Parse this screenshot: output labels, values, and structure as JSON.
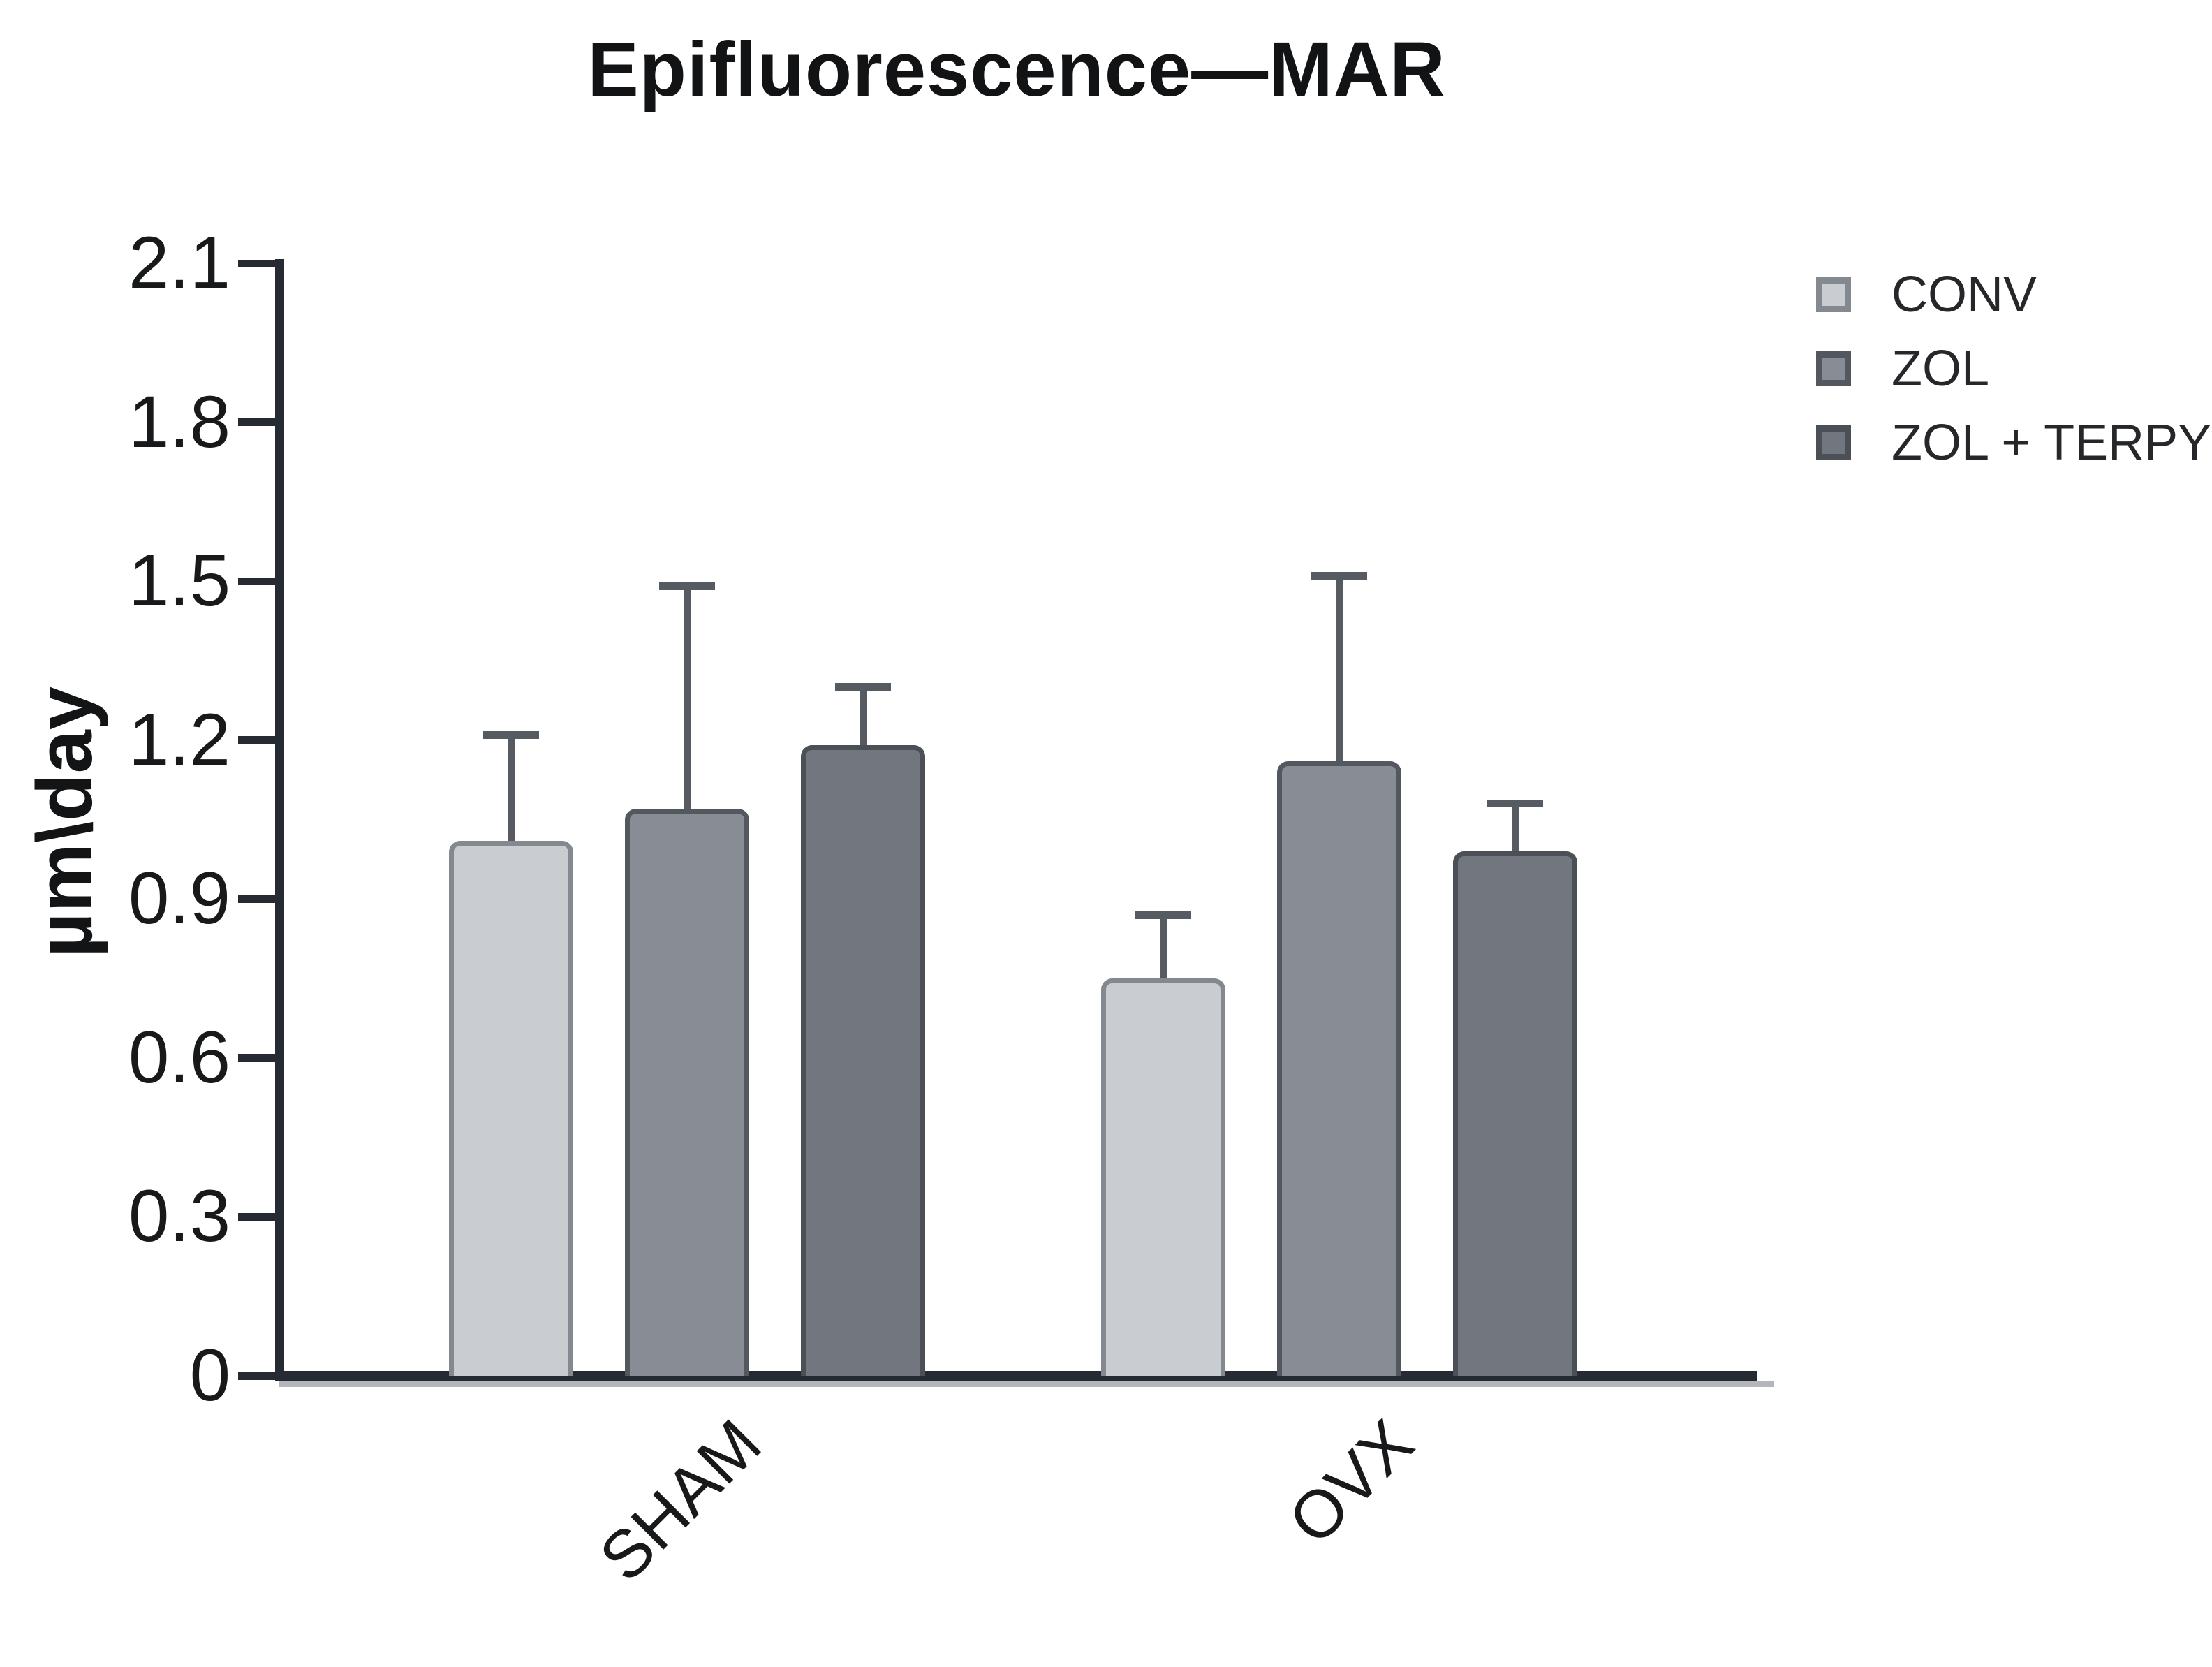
{
  "chart_data": {
    "type": "bar",
    "title": "Epifluorescence—MAR",
    "ylabel": "µm\\day",
    "xlabel": "",
    "categories": [
      "SHAM",
      "OVX"
    ],
    "series": [
      {
        "name": "CONV",
        "fill": "#c9ccd1",
        "border": "#84888f",
        "values": [
          1.01,
          0.75
        ],
        "errors_plus": [
          0.2,
          0.12
        ]
      },
      {
        "name": "ZOL",
        "fill": "#888c94",
        "border": "#53575e",
        "values": [
          1.07,
          1.16
        ],
        "errors_plus": [
          0.42,
          0.35
        ]
      },
      {
        "name": "ZOL + TERPY",
        "fill": "#71767f",
        "border": "#4b4f56",
        "values": [
          1.19,
          0.99
        ],
        "errors_plus": [
          0.11,
          0.09
        ]
      }
    ],
    "ylim": [
      0,
      2.1
    ],
    "yticks": [
      0,
      0.3,
      0.6,
      0.9,
      1.2,
      1.5,
      1.8,
      2.1
    ],
    "ytick_labels": [
      "0",
      "0.3",
      "0.6",
      "0.9",
      "1.2",
      "1.5",
      "1.8",
      "2.1"
    ],
    "grid": false,
    "legend_position": "right",
    "error_bar_color": "#565a61",
    "axis_color": "#262b33"
  }
}
